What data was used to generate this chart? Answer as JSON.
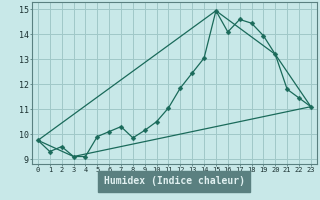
{
  "xlabel": "Humidex (Indice chaleur)",
  "bg_color": "#c8e8e8",
  "plot_bg_color": "#c8e8e8",
  "grid_color": "#a0c8c8",
  "line_color": "#1a6a5a",
  "bottom_bar_color": "#5a8080",
  "xlim": [
    -0.5,
    23.5
  ],
  "ylim": [
    8.8,
    15.3
  ],
  "yticks": [
    9,
    10,
    11,
    12,
    13,
    14,
    15
  ],
  "xticks": [
    0,
    1,
    2,
    3,
    4,
    5,
    6,
    7,
    8,
    9,
    10,
    11,
    12,
    13,
    14,
    15,
    16,
    17,
    18,
    19,
    20,
    21,
    22,
    23
  ],
  "line1_x": [
    0,
    1,
    2,
    3,
    4,
    5,
    6,
    7,
    8,
    9,
    10,
    11,
    12,
    13,
    14,
    15,
    16,
    17,
    18,
    19,
    20,
    21,
    22,
    23
  ],
  "line1_y": [
    9.75,
    9.3,
    9.5,
    9.1,
    9.1,
    9.9,
    10.1,
    10.3,
    9.85,
    10.15,
    10.5,
    11.05,
    11.85,
    12.45,
    13.05,
    14.95,
    14.1,
    14.6,
    14.45,
    13.95,
    13.2,
    11.8,
    11.45,
    11.1
  ],
  "line2_x": [
    0,
    3,
    23
  ],
  "line2_y": [
    9.75,
    9.1,
    11.1
  ],
  "line3_x": [
    0,
    15,
    20,
    23
  ],
  "line3_y": [
    9.75,
    14.95,
    13.2,
    11.1
  ]
}
